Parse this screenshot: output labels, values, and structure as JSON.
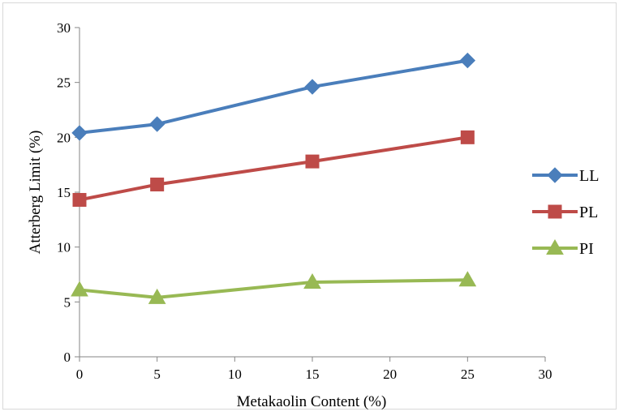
{
  "chart_data": {
    "type": "line",
    "xlabel": "Metakaolin Content (%)",
    "ylabel": "Atterberg Limit (%)",
    "xlim": [
      0,
      30
    ],
    "ylim": [
      0,
      30
    ],
    "x_ticks": [
      0,
      5,
      10,
      15,
      20,
      25,
      30
    ],
    "y_ticks": [
      0,
      5,
      10,
      15,
      20,
      25,
      30
    ],
    "grid": false,
    "legend_position": "right",
    "x": [
      0,
      5,
      15,
      25
    ],
    "series": [
      {
        "name": "LL",
        "values": [
          20.4,
          21.2,
          24.6,
          27.0
        ],
        "color": "#4a7ebb",
        "marker": "diamond"
      },
      {
        "name": "PL",
        "values": [
          14.3,
          15.7,
          17.8,
          20.0
        ],
        "color": "#be4b48",
        "marker": "square"
      },
      {
        "name": "PI",
        "values": [
          6.1,
          5.4,
          6.8,
          7.0
        ],
        "color": "#98b954",
        "marker": "triangle"
      }
    ]
  }
}
